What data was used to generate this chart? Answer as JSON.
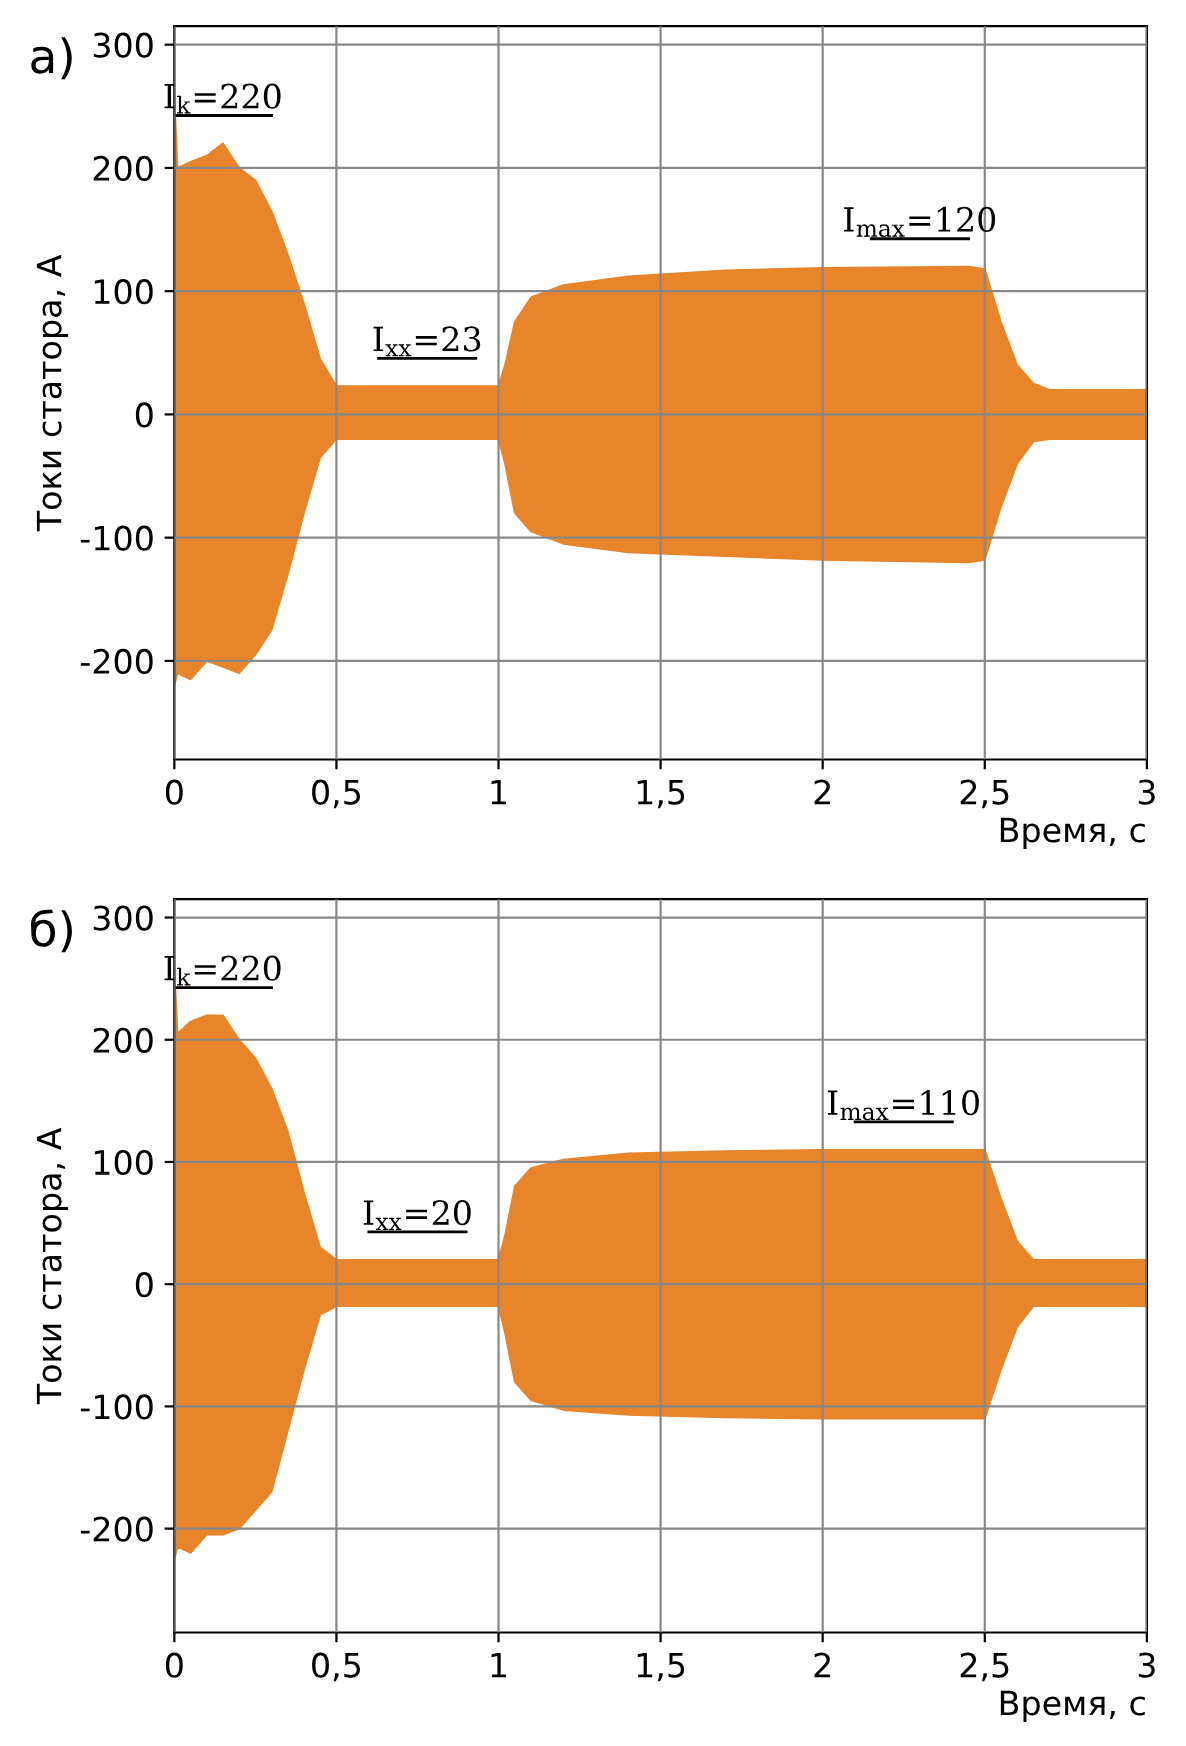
{
  "chart_data": [
    {
      "type": "area",
      "title": "а)",
      "xlabel": "Время, с",
      "ylabel": "Токи статора, А",
      "x": [
        0,
        0.01,
        0.05,
        0.1,
        0.15,
        0.2,
        0.25,
        0.3,
        0.35,
        0.4,
        0.45,
        0.5,
        0.75,
        1.0,
        1.02,
        1.05,
        1.1,
        1.2,
        1.4,
        1.7,
        2.0,
        2.45,
        2.5,
        2.55,
        2.6,
        2.65,
        2.7,
        3.0
      ],
      "series": [
        {
          "color": "#e8842a",
          "values": [
            260,
            200,
            205,
            210,
            220,
            200,
            190,
            165,
            130,
            90,
            45,
            23,
            23,
            23,
            40,
            75,
            95,
            105,
            112,
            117,
            119,
            120,
            118,
            75,
            40,
            25,
            20,
            20
          ]
        },
        {
          "color": "#e8842a",
          "values": [
            -220,
            -210,
            -215,
            -200,
            -205,
            -210,
            -195,
            -175,
            -130,
            -80,
            -35,
            -20,
            -20,
            -20,
            -40,
            -80,
            -95,
            -105,
            -112,
            -115,
            -118,
            -120,
            -118,
            -75,
            -40,
            -22,
            -20,
            -20
          ]
        }
      ],
      "annotations": [
        {
          "text": "I$_{k}$=220",
          "x": 0.15,
          "y": 220
        },
        {
          "text": "I$_{xx}$=23",
          "x": 0.78,
          "y": 23
        },
        {
          "text": "I$_{max}$=120",
          "x": 2.3,
          "y": 120
        }
      ],
      "xlim": [
        0,
        3
      ],
      "ylim": [
        -280,
        315
      ],
      "xticks": [
        0,
        {
          "value": 0.5,
          "label": "0,5"
        },
        1,
        {
          "value": 1.5,
          "label": "1,5"
        },
        2,
        {
          "value": 2.5,
          "label": "2,5"
        },
        3
      ],
      "yticks": [
        -200,
        -100,
        0,
        100,
        200,
        300
      ],
      "grid": true
    },
    {
      "type": "area",
      "title": "б)",
      "xlabel": "Время, с",
      "ylabel": "Токи статора, А",
      "x": [
        0,
        0.01,
        0.05,
        0.1,
        0.15,
        0.2,
        0.25,
        0.3,
        0.35,
        0.4,
        0.45,
        0.5,
        0.75,
        1.0,
        1.02,
        1.05,
        1.1,
        1.2,
        1.4,
        1.7,
        2.0,
        2.45,
        2.5,
        2.55,
        2.6,
        2.65,
        2.7,
        3.0
      ],
      "series": [
        {
          "color": "#e8842a",
          "values": [
            260,
            205,
            215,
            220,
            220,
            200,
            185,
            160,
            125,
            75,
            30,
            20,
            20,
            20,
            40,
            80,
            95,
            102,
            107,
            109,
            110,
            110,
            110,
            70,
            35,
            20,
            20,
            20
          ]
        },
        {
          "color": "#e8842a",
          "values": [
            -225,
            -215,
            -220,
            -205,
            -205,
            -200,
            -185,
            -170,
            -120,
            -70,
            -25,
            -18,
            -18,
            -18,
            -40,
            -80,
            -95,
            -103,
            -107,
            -109,
            -110,
            -110,
            -110,
            -70,
            -35,
            -18,
            -18,
            -18
          ]
        }
      ],
      "annotations": [
        {
          "text": "I$_{k}$=220",
          "x": 0.15,
          "y": 220
        },
        {
          "text": "I$_{xx}$=20",
          "x": 0.75,
          "y": 20
        },
        {
          "text": "I$_{max}$=110",
          "x": 2.25,
          "y": 110
        }
      ],
      "xlim": [
        0,
        3
      ],
      "ylim": [
        -285,
        315
      ],
      "xticks": [
        0,
        {
          "value": 0.5,
          "label": "0,5"
        },
        1,
        {
          "value": 1.5,
          "label": "1,5"
        },
        2,
        {
          "value": 2.5,
          "label": "2,5"
        },
        3
      ],
      "yticks": [
        -200,
        -100,
        0,
        100,
        200,
        300
      ],
      "grid": true
    }
  ]
}
